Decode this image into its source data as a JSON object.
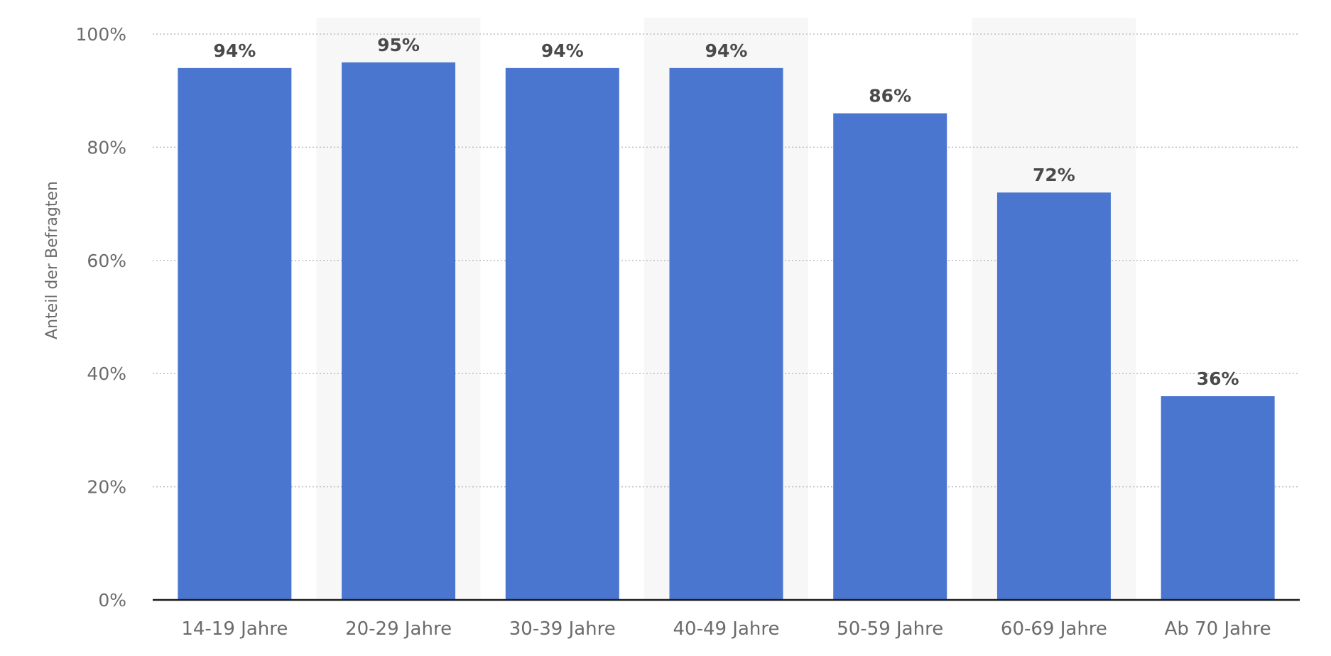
{
  "chart_data": {
    "type": "bar",
    "categories": [
      "14-19 Jahre",
      "20-29 Jahre",
      "30-39 Jahre",
      "40-49 Jahre",
      "50-59 Jahre",
      "60-69 Jahre",
      "Ab 70 Jahre"
    ],
    "values": [
      94,
      95,
      94,
      94,
      86,
      72,
      36
    ],
    "value_labels": [
      "94%",
      "95%",
      "94%",
      "94%",
      "86%",
      "72%",
      "36%"
    ],
    "title": "",
    "xlabel": "",
    "ylabel": "Anteil der Befragten",
    "ylim": [
      0,
      100
    ],
    "yticks": [
      0,
      20,
      40,
      60,
      80,
      100
    ],
    "ytick_labels": [
      "0%",
      "20%",
      "40%",
      "60%",
      "80%",
      "100%"
    ],
    "grid": true,
    "legend": "none"
  },
  "colors": {
    "bar": "#4a76d0",
    "grid": "#bdbdbd",
    "axis": "#1a1a1a",
    "tick_text": "#6b6b6b",
    "value_text": "#4a4a4a",
    "band": "#f7f7f7"
  }
}
